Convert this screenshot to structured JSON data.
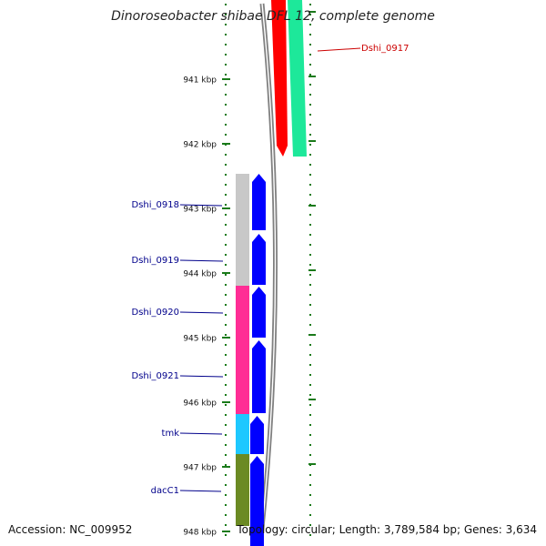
{
  "title": "Dinoroseobacter shibae DFL 12, complete genome",
  "footer": {
    "accession": "Accession: NC_009952",
    "topology": "Topology: circular; Length: 3,789,584 bp; Genes: 3,634"
  },
  "colors": {
    "tick": "#1a7a1a",
    "label_left": "#00008b",
    "label_right": "#cc0000",
    "backbone": "#808080",
    "cds_arrow": "#0000ff",
    "forward_cds_arrow": "#ff0000",
    "forward_region": "#1de89a"
  },
  "scale": {
    "unit": "kbp",
    "ticks": [
      {
        "label": "941 kbp"
      },
      {
        "label": "942 kbp"
      },
      {
        "label": "943 kbp"
      },
      {
        "label": "944 kbp"
      },
      {
        "label": "945 kbp"
      },
      {
        "label": "946 kbp"
      },
      {
        "label": "947 kbp"
      },
      {
        "label": "948 kbp"
      }
    ]
  },
  "genes": [
    {
      "name": "Dshi_0917",
      "strand": "forward",
      "color": "#1de89a"
    },
    {
      "name": "Dshi_0918",
      "strand": "reverse",
      "color": "#c8c8c8"
    },
    {
      "name": "Dshi_0919",
      "strand": "reverse",
      "color": "#c8c8c8"
    },
    {
      "name": "Dshi_0920",
      "strand": "reverse",
      "color": "#ff2d95"
    },
    {
      "name": "Dshi_0921",
      "strand": "reverse",
      "color": "#ff2d95"
    },
    {
      "name": "tmk",
      "strand": "reverse",
      "color": "#1ec8ff"
    },
    {
      "name": "dacC1",
      "strand": "reverse",
      "color": "#6b8a23"
    }
  ]
}
